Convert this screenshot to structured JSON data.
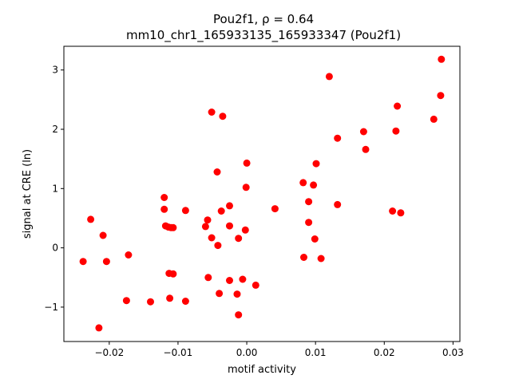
{
  "chart_data": {
    "type": "scatter",
    "title_line1": "Pou2f1, ρ = 0.64",
    "title_line2": "mm10_chr1_165933135_165933347 (Pou2f1)",
    "xlabel": "motif activity",
    "ylabel": "signal at CRE (ln)",
    "xlim": [
      -0.0266,
      0.031
    ],
    "ylim": [
      -1.58,
      3.4
    ],
    "xticks": [
      -0.02,
      -0.01,
      0.0,
      0.01,
      0.02,
      0.03
    ],
    "xtick_labels": [
      "−0.02",
      "−0.01",
      "0.00",
      "0.01",
      "0.02",
      "0.03"
    ],
    "yticks": [
      -1,
      0,
      1,
      2,
      3
    ],
    "ytick_labels": [
      "−1",
      "0",
      "1",
      "2",
      "3"
    ],
    "marker_color": "#ff0000",
    "grid": false,
    "points": [
      {
        "x": -0.0238,
        "y": -0.23
      },
      {
        "x": -0.0227,
        "y": 0.48
      },
      {
        "x": -0.0215,
        "y": -1.35
      },
      {
        "x": -0.0209,
        "y": 0.21
      },
      {
        "x": -0.0204,
        "y": -0.23
      },
      {
        "x": -0.0172,
        "y": -0.12
      },
      {
        "x": -0.0175,
        "y": -0.89
      },
      {
        "x": -0.014,
        "y": -0.91
      },
      {
        "x": -0.012,
        "y": 0.85
      },
      {
        "x": -0.012,
        "y": 0.65
      },
      {
        "x": -0.0118,
        "y": 0.37
      },
      {
        "x": -0.0114,
        "y": 0.35
      },
      {
        "x": -0.011,
        "y": 0.34
      },
      {
        "x": -0.0107,
        "y": 0.34
      },
      {
        "x": -0.0113,
        "y": -0.43
      },
      {
        "x": -0.0107,
        "y": -0.44
      },
      {
        "x": -0.0112,
        "y": -0.85
      },
      {
        "x": -0.0089,
        "y": 0.63
      },
      {
        "x": -0.0089,
        "y": -0.9
      },
      {
        "x": -0.006,
        "y": 0.36
      },
      {
        "x": -0.0057,
        "y": 0.47
      },
      {
        "x": -0.0056,
        "y": -0.5
      },
      {
        "x": -0.0051,
        "y": 0.17
      },
      {
        "x": -0.0051,
        "y": 2.29
      },
      {
        "x": -0.0043,
        "y": 1.28
      },
      {
        "x": -0.0042,
        "y": 0.04
      },
      {
        "x": -0.004,
        "y": -0.77
      },
      {
        "x": -0.0037,
        "y": 0.62
      },
      {
        "x": -0.0035,
        "y": 2.22
      },
      {
        "x": -0.0025,
        "y": 0.71
      },
      {
        "x": -0.0025,
        "y": 0.37
      },
      {
        "x": -0.0025,
        "y": -0.55
      },
      {
        "x": -0.0014,
        "y": -0.78
      },
      {
        "x": -0.0012,
        "y": 0.16
      },
      {
        "x": -0.0012,
        "y": -1.13
      },
      {
        "x": -0.0006,
        "y": -0.53
      },
      {
        "x": -0.0002,
        "y": 0.3
      },
      {
        "x": -0.0001,
        "y": 1.02
      },
      {
        "x": 0.0,
        "y": 1.43
      },
      {
        "x": 0.0013,
        "y": -0.63
      },
      {
        "x": 0.0041,
        "y": 0.66
      },
      {
        "x": 0.0082,
        "y": 1.1
      },
      {
        "x": 0.0083,
        "y": -0.16
      },
      {
        "x": 0.009,
        "y": 0.78
      },
      {
        "x": 0.009,
        "y": 0.43
      },
      {
        "x": 0.0097,
        "y": 1.06
      },
      {
        "x": 0.0099,
        "y": 0.15
      },
      {
        "x": 0.0101,
        "y": 1.42
      },
      {
        "x": 0.0108,
        "y": -0.18
      },
      {
        "x": 0.012,
        "y": 2.89
      },
      {
        "x": 0.0132,
        "y": 1.85
      },
      {
        "x": 0.0132,
        "y": 0.73
      },
      {
        "x": 0.017,
        "y": 1.96
      },
      {
        "x": 0.0173,
        "y": 1.66
      },
      {
        "x": 0.0212,
        "y": 0.62
      },
      {
        "x": 0.0217,
        "y": 1.97
      },
      {
        "x": 0.0219,
        "y": 2.39
      },
      {
        "x": 0.0224,
        "y": 0.59
      },
      {
        "x": 0.0272,
        "y": 2.17
      },
      {
        "x": 0.0282,
        "y": 2.57
      },
      {
        "x": 0.0283,
        "y": 3.18
      }
    ]
  }
}
